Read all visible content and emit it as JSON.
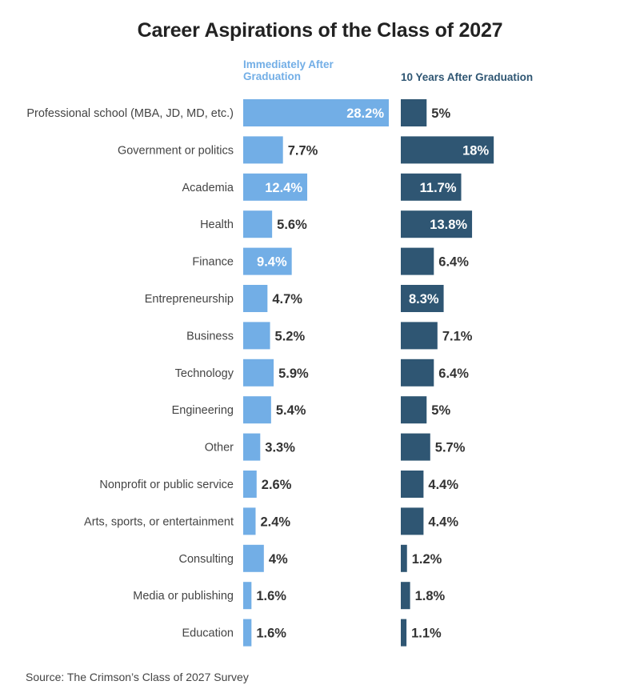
{
  "chart_data": {
    "type": "bar",
    "title": "Career Aspirations of the Class of 2027",
    "source": "Source: The Crimson’s Class of 2027 Survey",
    "categories": [
      "Professional school (MBA, JD, MD, etc.)",
      "Government or politics",
      "Academia",
      "Health",
      "Finance",
      "Entrepreneurship",
      "Business",
      "Technology",
      "Engineering",
      "Other",
      "Nonprofit or public service",
      "Arts, sports, or entertainment",
      "Consulting",
      "Media or publishing",
      "Education"
    ],
    "series": [
      {
        "name": "Immediately After Graduation",
        "color": "#72aee6",
        "values": [
          28.2,
          7.7,
          12.4,
          5.6,
          9.4,
          4.7,
          5.2,
          5.9,
          5.4,
          3.3,
          2.6,
          2.4,
          4,
          1.6,
          1.6
        ],
        "labels": [
          "28.2%",
          "7.7%",
          "12.4%",
          "5.6%",
          "9.4%",
          "4.7%",
          "5.2%",
          "5.9%",
          "5.4%",
          "3.3%",
          "2.6%",
          "2.4%",
          "4%",
          "1.6%",
          "1.6%"
        ]
      },
      {
        "name": "10 Years After Graduation",
        "color": "#2f5673",
        "values": [
          5,
          18,
          11.7,
          13.8,
          6.4,
          8.3,
          7.1,
          6.4,
          5,
          5.7,
          4.4,
          4.4,
          1.2,
          1.8,
          1.1
        ],
        "labels": [
          "5%",
          "18%",
          "11.7%",
          "13.8%",
          "6.4%",
          "8.3%",
          "7.1%",
          "6.4%",
          "5%",
          "5.7%",
          "4.4%",
          "4.4%",
          "1.2%",
          "1.8%",
          "1.1%"
        ]
      }
    ],
    "label_color_dark": "#333333",
    "label_color_light": "#ffffff"
  }
}
